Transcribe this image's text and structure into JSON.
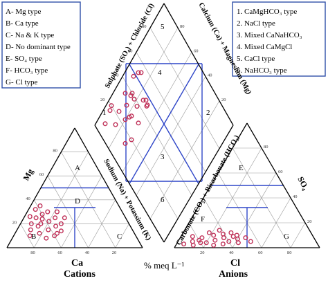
{
  "hydro_legend": {
    "items": [
      "A- Mg type",
      "B- Ca type",
      "C- Na & K type",
      "D- No dominant type",
      "E- SO₄ type",
      "F- HCO₃ type",
      "G- Cl type"
    ]
  },
  "water_type_legend": {
    "items": [
      "1.  CaMgHCO₃ type",
      "2.  NaCl type",
      "3.  Mixed CaNaHCO₃",
      "4.  Mixed CaMgCl",
      "5.  CaCl type",
      "6.  NaHCO₃ type"
    ]
  },
  "diamond": {
    "left_axis_label": "Sulphate (SO₄) + Chloride (Cl)",
    "right_axis_label": "Calcium (Ca) + Magnesium (Mg)",
    "lower_left_axis_label": "Sodium (Na) + Potassium (K)",
    "lower_right_axis_label": "Carbonate (CO₃) + Bicarbonate (HCO₃)",
    "zone_labels": [
      "1",
      "2",
      "3",
      "4",
      "5",
      "6"
    ]
  },
  "cation_triangle": {
    "apex_label": "Mg",
    "bottom_label": "Ca",
    "caption": "Cations",
    "zone_labels": [
      "A",
      "B",
      "C",
      "D"
    ]
  },
  "anion_triangle": {
    "apex_label": "SO₄",
    "bottom_label": "Cl",
    "caption": "Anions",
    "zone_labels": [
      "E",
      "F",
      "G"
    ]
  },
  "ticks": [
    "20",
    "40",
    "60",
    "80"
  ],
  "units_label": "% meq L⁻¹",
  "colors": {
    "grid_lines": "#999999",
    "zone_lines": "#2f46c8",
    "samples": "#c0335a",
    "legend_border": "#2f4fa8"
  },
  "chart_data": {
    "type": "scatter",
    "cation_samples": [
      {
        "Ca": 55,
        "Mg": 30
      },
      {
        "Ca": 60,
        "Mg": 28
      },
      {
        "Ca": 58,
        "Mg": 22
      },
      {
        "Ca": 65,
        "Mg": 20
      },
      {
        "Ca": 62,
        "Mg": 15
      },
      {
        "Ca": 68,
        "Mg": 18
      },
      {
        "Ca": 55,
        "Mg": 18
      },
      {
        "Ca": 52,
        "Mg": 25
      },
      {
        "Ca": 70,
        "Mg": 12
      },
      {
        "Ca": 60,
        "Mg": 10
      },
      {
        "Ca": 57,
        "Mg": 12
      },
      {
        "Ca": 66,
        "Mg": 25
      },
      {
        "Ca": 72,
        "Mg": 20
      },
      {
        "Ca": 63,
        "Mg": 32
      },
      {
        "Ca": 50,
        "Mg": 20
      },
      {
        "Ca": 48,
        "Mg": 30
      },
      {
        "Ca": 75,
        "Mg": 15
      },
      {
        "Ca": 58,
        "Mg": 35
      },
      {
        "Ca": 67,
        "Mg": 8
      },
      {
        "Ca": 53,
        "Mg": 14
      },
      {
        "Ca": 78,
        "Mg": 10
      },
      {
        "Ca": 62,
        "Mg": 24
      },
      {
        "Ca": 45,
        "Mg": 25
      },
      {
        "Ca": 70,
        "Mg": 26
      }
    ],
    "anion_samples": [
      {
        "Cl": 10,
        "SO4": 5
      },
      {
        "Cl": 15,
        "SO4": 8
      },
      {
        "Cl": 20,
        "SO4": 4
      },
      {
        "Cl": 25,
        "SO4": 6
      },
      {
        "Cl": 30,
        "SO4": 8
      },
      {
        "Cl": 35,
        "SO4": 5
      },
      {
        "Cl": 40,
        "SO4": 7
      },
      {
        "Cl": 18,
        "SO4": 12
      },
      {
        "Cl": 28,
        "SO4": 11
      },
      {
        "Cl": 12,
        "SO4": 2
      },
      {
        "Cl": 22,
        "SO4": 10
      },
      {
        "Cl": 32,
        "SO4": 3
      },
      {
        "Cl": 38,
        "SO4": 10
      },
      {
        "Cl": 8,
        "SO4": 9
      },
      {
        "Cl": 42,
        "SO4": 4
      },
      {
        "Cl": 26,
        "SO4": 2
      },
      {
        "Cl": 45,
        "SO4": 8
      },
      {
        "Cl": 5,
        "SO4": 3
      },
      {
        "Cl": 33,
        "SO4": 12
      },
      {
        "Cl": 16,
        "SO4": 4
      },
      {
        "Cl": 50,
        "SO4": 5
      },
      {
        "Cl": 24,
        "SO4": 14
      },
      {
        "Cl": 36,
        "SO4": 9
      },
      {
        "Cl": 14,
        "SO4": 6
      }
    ]
  }
}
